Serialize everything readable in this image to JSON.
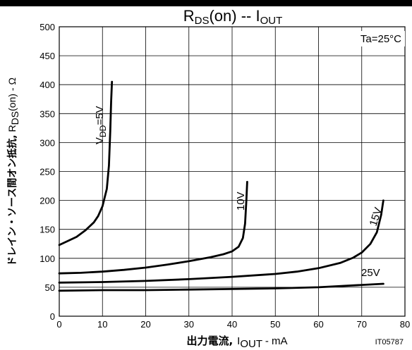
{
  "chart_data": {
    "type": "line",
    "title": {
      "main": "R",
      "main_sub": "DS",
      "main_rest": "(on)  --  I",
      "main_sub2": "OUT"
    },
    "condition": "Ta=25°C",
    "xlabel": {
      "jp": "出力電流,",
      "main": "I",
      "sub": "OUT",
      "rest": " - mA"
    },
    "ylabel": {
      "jp": "ドレイン・ソース間オン抵抗,",
      "main": " R",
      "sub": "DS",
      "rest": "(on) - Ω"
    },
    "xlim": [
      0,
      80
    ],
    "ylim": [
      0,
      500
    ],
    "x_ticks": [
      0,
      10,
      20,
      30,
      40,
      50,
      60,
      70,
      80
    ],
    "y_ticks": [
      0,
      50,
      100,
      150,
      200,
      250,
      300,
      350,
      400,
      450,
      500
    ],
    "grid": true,
    "code": "IT05787",
    "series": [
      {
        "name": "VDD=5V",
        "label": {
          "main": "V",
          "sub": "DD",
          "rest": "=5V"
        },
        "x": [
          0,
          2,
          4,
          6,
          8,
          9,
          10,
          11,
          11.5,
          11.8,
          12,
          12.2
        ],
        "y": [
          123,
          130,
          137,
          148,
          162,
          173,
          190,
          220,
          260,
          320,
          370,
          405
        ]
      },
      {
        "name": "10V",
        "label": {
          "main": "10V",
          "sub": "",
          "rest": ""
        },
        "x": [
          0,
          5,
          10,
          15,
          20,
          25,
          30,
          35,
          38,
          40,
          41.5,
          42.5,
          43,
          43.3,
          43.5
        ],
        "y": [
          74,
          75,
          77,
          80,
          84,
          89,
          95,
          102,
          107,
          112,
          120,
          135,
          160,
          200,
          232
        ]
      },
      {
        "name": "15V",
        "label": {
          "main": "15V",
          "sub": "",
          "rest": ""
        },
        "x": [
          0,
          10,
          20,
          30,
          40,
          50,
          55,
          60,
          65,
          68,
          70,
          72,
          73.5,
          74.5,
          75
        ],
        "y": [
          58,
          59,
          61,
          64,
          68,
          73,
          77,
          83,
          92,
          101,
          110,
          125,
          145,
          175,
          200
        ]
      },
      {
        "name": "25V",
        "label": {
          "main": "25V",
          "sub": "",
          "rest": ""
        },
        "x": [
          0,
          10,
          20,
          30,
          40,
          50,
          60,
          70,
          75
        ],
        "y": [
          44,
          45,
          45,
          46,
          47,
          48,
          50,
          54,
          56
        ]
      }
    ]
  }
}
